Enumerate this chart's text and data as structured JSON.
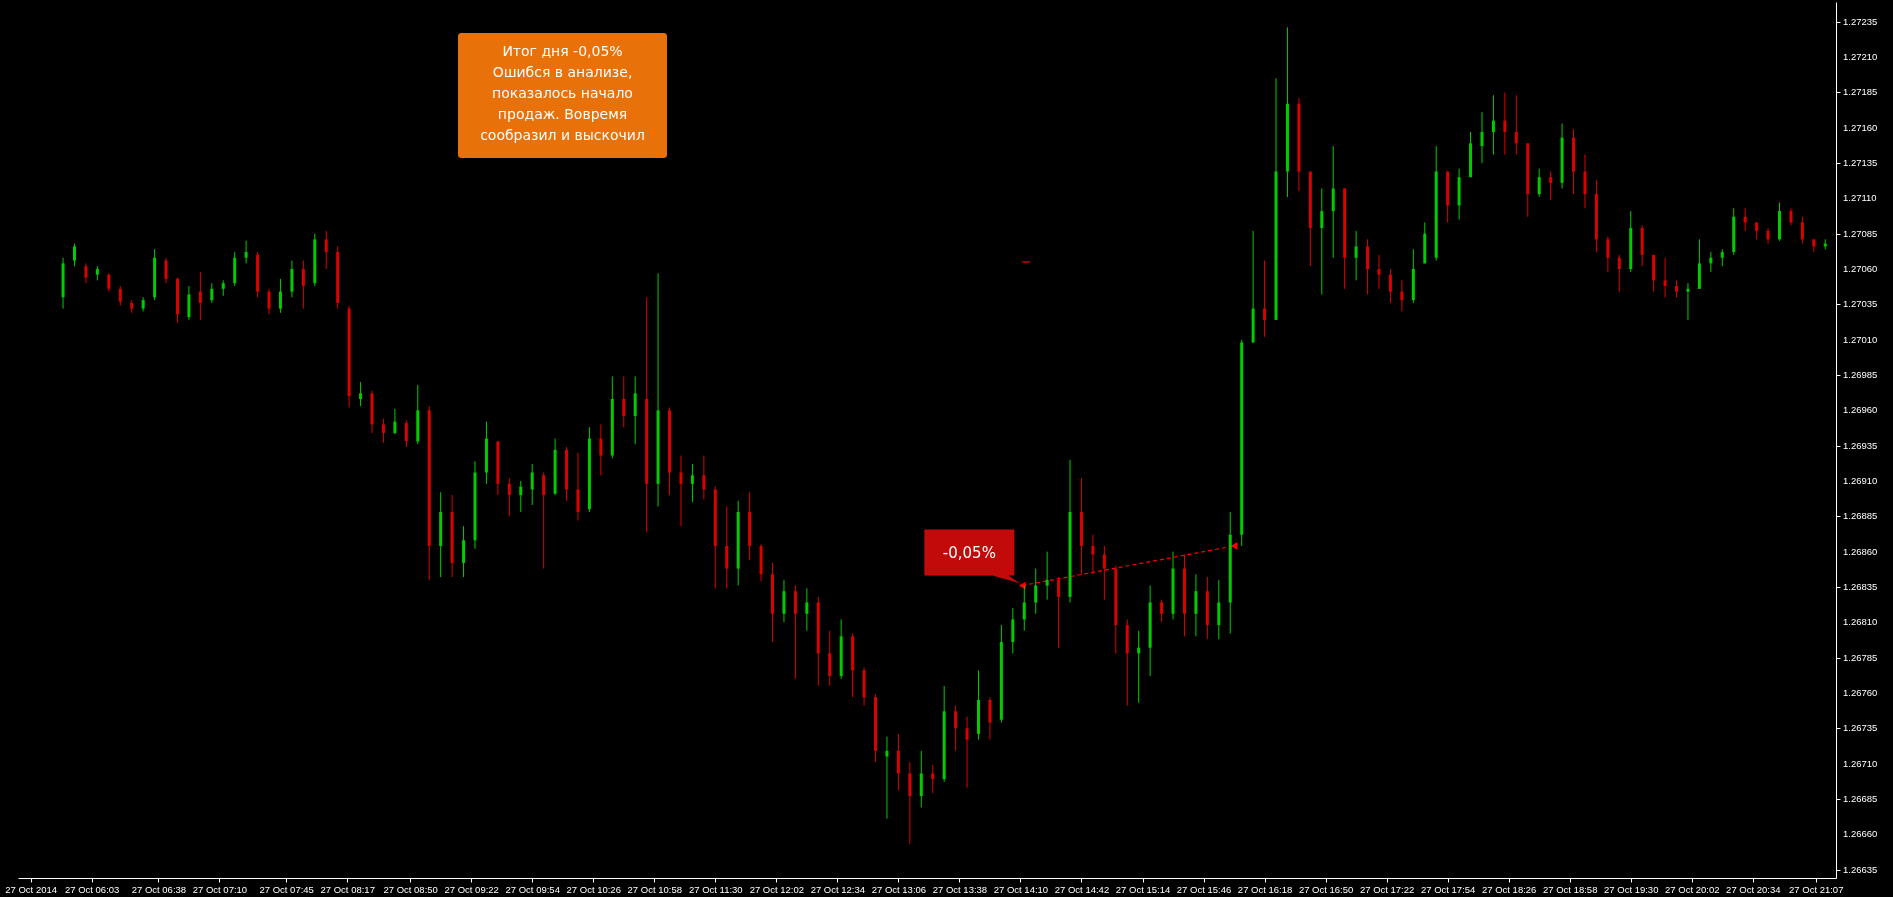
{
  "chart_data": {
    "type": "candlestick",
    "x": [
      "2014-10-27T05:48",
      "2014-10-27T05:54",
      "2014-10-27T06:00",
      "2014-10-27T06:06",
      "2014-10-27T06:12",
      "2014-10-27T06:18",
      "2014-10-27T06:24",
      "2014-10-27T06:30",
      "2014-10-27T06:36",
      "2014-10-27T06:42",
      "2014-10-27T06:48",
      "2014-10-27T06:54",
      "2014-10-27T07:00",
      "2014-10-27T07:06",
      "2014-10-27T07:12",
      "2014-10-27T07:18",
      "2014-10-27T07:24",
      "2014-10-27T07:30",
      "2014-10-27T07:36",
      "2014-10-27T07:42",
      "2014-10-27T07:48",
      "2014-10-27T07:54",
      "2014-10-27T08:00",
      "2014-10-27T08:06",
      "2014-10-27T08:12",
      "2014-10-27T08:18",
      "2014-10-27T08:24",
      "2014-10-27T08:30",
      "2014-10-27T08:36",
      "2014-10-27T08:42",
      "2014-10-27T08:48",
      "2014-10-27T08:54",
      "2014-10-27T09:00",
      "2014-10-27T09:06",
      "2014-10-27T09:12",
      "2014-10-27T09:18",
      "2014-10-27T09:24",
      "2014-10-27T09:30",
      "2014-10-27T09:36",
      "2014-10-27T09:42",
      "2014-10-27T09:48",
      "2014-10-27T09:54",
      "2014-10-27T10:00",
      "2014-10-27T10:06",
      "2014-10-27T10:12",
      "2014-10-27T10:18",
      "2014-10-27T10:24",
      "2014-10-27T10:30",
      "2014-10-27T10:36",
      "2014-10-27T10:42",
      "2014-10-27T10:48",
      "2014-10-27T10:54",
      "2014-10-27T11:00",
      "2014-10-27T11:06",
      "2014-10-27T11:12",
      "2014-10-27T11:18",
      "2014-10-27T11:24",
      "2014-10-27T11:30",
      "2014-10-27T11:36",
      "2014-10-27T11:42",
      "2014-10-27T11:48",
      "2014-10-27T11:54",
      "2014-10-27T12:00",
      "2014-10-27T12:06",
      "2014-10-27T12:12",
      "2014-10-27T12:18",
      "2014-10-27T12:24",
      "2014-10-27T12:30",
      "2014-10-27T12:36",
      "2014-10-27T12:42",
      "2014-10-27T12:48",
      "2014-10-27T12:54",
      "2014-10-27T13:00",
      "2014-10-27T13:06",
      "2014-10-27T13:12",
      "2014-10-27T13:18",
      "2014-10-27T13:24",
      "2014-10-27T13:30",
      "2014-10-27T13:36",
      "2014-10-27T13:42",
      "2014-10-27T13:48",
      "2014-10-27T13:54",
      "2014-10-27T14:00",
      "2014-10-27T14:06",
      "2014-10-27T14:12",
      "2014-10-27T14:18",
      "2014-10-27T14:24",
      "2014-10-27T14:30",
      "2014-10-27T14:36",
      "2014-10-27T14:42",
      "2014-10-27T14:48",
      "2014-10-27T14:54",
      "2014-10-27T15:00",
      "2014-10-27T15:06",
      "2014-10-27T15:12",
      "2014-10-27T15:18",
      "2014-10-27T15:24",
      "2014-10-27T15:30",
      "2014-10-27T15:36",
      "2014-10-27T15:42",
      "2014-10-27T15:48",
      "2014-10-27T15:54",
      "2014-10-27T16:00",
      "2014-10-27T16:06",
      "2014-10-27T16:12",
      "2014-10-27T16:18",
      "2014-10-27T16:24",
      "2014-10-27T16:30",
      "2014-10-27T16:36",
      "2014-10-27T16:42",
      "2014-10-27T16:48",
      "2014-10-27T16:54",
      "2014-10-27T17:00",
      "2014-10-27T17:06",
      "2014-10-27T17:12",
      "2014-10-27T17:18",
      "2014-10-27T17:24",
      "2014-10-27T17:30",
      "2014-10-27T17:36",
      "2014-10-27T17:42",
      "2014-10-27T17:48",
      "2014-10-27T17:54",
      "2014-10-27T18:00",
      "2014-10-27T18:06",
      "2014-10-27T18:12",
      "2014-10-27T18:18",
      "2014-10-27T18:24",
      "2014-10-27T18:30",
      "2014-10-27T18:36",
      "2014-10-27T18:42",
      "2014-10-27T18:48",
      "2014-10-27T18:54",
      "2014-10-27T19:00",
      "2014-10-27T19:06",
      "2014-10-27T19:12",
      "2014-10-27T19:18",
      "2014-10-27T19:24",
      "2014-10-27T19:30",
      "2014-10-27T19:36",
      "2014-10-27T19:42",
      "2014-10-27T19:48",
      "2014-10-27T19:54",
      "2014-10-27T20:00",
      "2014-10-27T20:06",
      "2014-10-27T20:12",
      "2014-10-27T20:18",
      "2014-10-27T20:24",
      "2014-10-27T20:30",
      "2014-10-27T20:36",
      "2014-10-27T20:42",
      "2014-10-27T20:48",
      "2014-10-27T20:54",
      "2014-10-27T21:00",
      "2014-10-27T21:06",
      "2014-10-27T21:12"
    ],
    "ohlc": [
      [
        1.2704,
        1.27068,
        1.27032,
        1.27064
      ],
      [
        1.27066,
        1.27078,
        1.27062,
        1.27076
      ],
      [
        1.27062,
        1.27064,
        1.2705,
        1.27054
      ],
      [
        1.27056,
        1.27062,
        1.27052,
        1.2706
      ],
      [
        1.27056,
        1.27057,
        1.27044,
        1.27046
      ],
      [
        1.27046,
        1.27048,
        1.27034,
        1.27037
      ],
      [
        1.27036,
        1.27038,
        1.27029,
        1.27032
      ],
      [
        1.27032,
        1.2704,
        1.2703,
        1.27038
      ],
      [
        1.2704,
        1.27074,
        1.27038,
        1.27068
      ],
      [
        1.27066,
        1.27068,
        1.2705,
        1.27053
      ],
      [
        1.27053,
        1.27054,
        1.27022,
        1.27028
      ],
      [
        1.27026,
        1.27048,
        1.27024,
        1.27042
      ],
      [
        1.27044,
        1.27058,
        1.27024,
        1.27036
      ],
      [
        1.27038,
        1.2705,
        1.27036,
        1.27046
      ],
      [
        1.27046,
        1.27052,
        1.27041,
        1.2705
      ],
      [
        1.2705,
        1.27072,
        1.27048,
        1.27068
      ],
      [
        1.27068,
        1.2708,
        1.27064,
        1.27072
      ],
      [
        1.2707,
        1.27072,
        1.2704,
        1.27044
      ],
      [
        1.27044,
        1.27046,
        1.27028,
        1.27032
      ],
      [
        1.27032,
        1.27053,
        1.27029,
        1.27044
      ],
      [
        1.27044,
        1.27066,
        1.2704,
        1.2706
      ],
      [
        1.2706,
        1.27066,
        1.27032,
        1.27048
      ],
      [
        1.2705,
        1.27085,
        1.27048,
        1.27081
      ],
      [
        1.27081,
        1.27087,
        1.2706,
        1.27072
      ],
      [
        1.27072,
        1.27076,
        1.27032,
        1.27036
      ],
      [
        1.27032,
        1.27034,
        1.26962,
        1.2697
      ],
      [
        1.26968,
        1.2698,
        1.26963,
        1.26972
      ],
      [
        1.26972,
        1.26974,
        1.26944,
        1.2695
      ],
      [
        1.2695,
        1.26954,
        1.26937,
        1.26944
      ],
      [
        1.26944,
        1.26961,
        1.26943,
        1.26952
      ],
      [
        1.26951,
        1.26953,
        1.26934,
        1.26938
      ],
      [
        1.26938,
        1.26978,
        1.26936,
        1.2696
      ],
      [
        1.2696,
        1.26963,
        1.2684,
        1.26864
      ],
      [
        1.26864,
        1.26902,
        1.26842,
        1.26888
      ],
      [
        1.26888,
        1.269,
        1.26842,
        1.26852
      ],
      [
        1.26852,
        1.26878,
        1.26842,
        1.26868
      ],
      [
        1.26868,
        1.26924,
        1.26862,
        1.26916
      ],
      [
        1.26916,
        1.26952,
        1.26908,
        1.2694
      ],
      [
        1.26938,
        1.26938,
        1.269,
        1.26908
      ],
      [
        1.26908,
        1.26912,
        1.26885,
        1.269
      ],
      [
        1.269,
        1.2691,
        1.26888,
        1.26906
      ],
      [
        1.26904,
        1.26922,
        1.26893,
        1.26916
      ],
      [
        1.26914,
        1.26916,
        1.26848,
        1.269
      ],
      [
        1.26901,
        1.2694,
        1.269,
        1.26932
      ],
      [
        1.26932,
        1.26934,
        1.26896,
        1.26904
      ],
      [
        1.26904,
        1.2693,
        1.26882,
        1.26888
      ],
      [
        1.2689,
        1.26948,
        1.26888,
        1.2694
      ],
      [
        1.2694,
        1.2695,
        1.26914,
        1.26928
      ],
      [
        1.26928,
        1.26984,
        1.26926,
        1.26968
      ],
      [
        1.26968,
        1.26984,
        1.26948,
        1.26956
      ],
      [
        1.26956,
        1.26984,
        1.26936,
        1.26972
      ],
      [
        1.26968,
        1.2704,
        1.26874,
        1.26908
      ],
      [
        1.26908,
        1.27057,
        1.26892,
        1.2696
      ],
      [
        1.2696,
        1.26962,
        1.269,
        1.26916
      ],
      [
        1.26916,
        1.26928,
        1.26878,
        1.26908
      ],
      [
        1.26908,
        1.26922,
        1.26895,
        1.26914
      ],
      [
        1.26914,
        1.26928,
        1.26897,
        1.26904
      ],
      [
        1.26904,
        1.26906,
        1.26834,
        1.26864
      ],
      [
        1.26864,
        1.26892,
        1.26834,
        1.26848
      ],
      [
        1.26848,
        1.26896,
        1.26836,
        1.26888
      ],
      [
        1.26888,
        1.26902,
        1.26854,
        1.26864
      ],
      [
        1.26864,
        1.26865,
        1.26839,
        1.26844
      ],
      [
        1.26844,
        1.26852,
        1.26796,
        1.26816
      ],
      [
        1.26816,
        1.2684,
        1.2681,
        1.26832
      ],
      [
        1.26832,
        1.26836,
        1.2677,
        1.26816
      ],
      [
        1.26816,
        1.26834,
        1.26804,
        1.26824
      ],
      [
        1.26824,
        1.26828,
        1.26765,
        1.26788
      ],
      [
        1.26788,
        1.26804,
        1.26765,
        1.26772
      ],
      [
        1.26772,
        1.26812,
        1.2677,
        1.268
      ],
      [
        1.268,
        1.26802,
        1.26757,
        1.26776
      ],
      [
        1.26776,
        1.26778,
        1.26751,
        1.26757
      ],
      [
        1.26757,
        1.26759,
        1.26711,
        1.26719
      ],
      [
        1.26715,
        1.26729,
        1.26671,
        1.26719
      ],
      [
        1.26719,
        1.26731,
        1.26691,
        1.26703
      ],
      [
        1.26703,
        1.26711,
        1.26653,
        1.26687
      ],
      [
        1.26687,
        1.26719,
        1.26679,
        1.26703
      ],
      [
        1.26703,
        1.26709,
        1.26689,
        1.26699
      ],
      [
        1.26699,
        1.26765,
        1.26697,
        1.26747
      ],
      [
        1.26747,
        1.26751,
        1.26719,
        1.26735
      ],
      [
        1.26735,
        1.26743,
        1.26693,
        1.26727
      ],
      [
        1.26731,
        1.26776,
        1.26727,
        1.26755
      ],
      [
        1.26755,
        1.26757,
        1.26727,
        1.26739
      ],
      [
        1.26741,
        1.26808,
        1.26739,
        1.26796
      ],
      [
        1.26796,
        1.2682,
        1.26788,
        1.26812
      ],
      [
        1.26812,
        1.26836,
        1.26804,
        1.26824
      ],
      [
        1.26824,
        1.26848,
        1.26816,
        1.26836
      ],
      [
        1.26836,
        1.2686,
        1.26826,
        1.2684
      ],
      [
        1.2684,
        1.26842,
        1.26792,
        1.26828
      ],
      [
        1.26828,
        1.26925,
        1.26824,
        1.26888
      ],
      [
        1.26888,
        1.26912,
        1.26844,
        1.26864
      ],
      [
        1.26864,
        1.26872,
        1.26844,
        1.26858
      ],
      [
        1.26858,
        1.26864,
        1.26826,
        1.26848
      ],
      [
        1.26848,
        1.2685,
        1.26788,
        1.26808
      ],
      [
        1.26808,
        1.26812,
        1.26751,
        1.26788
      ],
      [
        1.26788,
        1.26804,
        1.26753,
        1.26792
      ],
      [
        1.26792,
        1.26836,
        1.26772,
        1.26824
      ],
      [
        1.26824,
        1.26826,
        1.2681,
        1.26816
      ],
      [
        1.26816,
        1.2686,
        1.26812,
        1.26848
      ],
      [
        1.26848,
        1.26858,
        1.268,
        1.26816
      ],
      [
        1.26816,
        1.26844,
        1.268,
        1.26832
      ],
      [
        1.26832,
        1.26842,
        1.26798,
        1.26808
      ],
      [
        1.26808,
        1.2684,
        1.26798,
        1.26824
      ],
      [
        1.26824,
        1.26888,
        1.26802,
        1.26872
      ],
      [
        1.26872,
        1.2701,
        1.26864,
        1.27008
      ],
      [
        1.27008,
        1.27087,
        1.27008,
        1.27032
      ],
      [
        1.27032,
        1.27066,
        1.27012,
        1.27024
      ],
      [
        1.27024,
        1.27195,
        1.27024,
        1.27129
      ],
      [
        1.27129,
        1.27231,
        1.27111,
        1.27177
      ],
      [
        1.27177,
        1.27181,
        1.27115,
        1.27129
      ],
      [
        1.27129,
        1.27129,
        1.27062,
        1.27089
      ],
      [
        1.27089,
        1.27117,
        1.27042,
        1.27101
      ],
      [
        1.27101,
        1.27147,
        1.27068,
        1.27117
      ],
      [
        1.27117,
        1.27117,
        1.27046,
        1.27068
      ],
      [
        1.27068,
        1.27087,
        1.27052,
        1.27076
      ],
      [
        1.27076,
        1.27081,
        1.27042,
        1.2706
      ],
      [
        1.2706,
        1.2707,
        1.27046,
        1.27056
      ],
      [
        1.27056,
        1.2706,
        1.27036,
        1.27044
      ],
      [
        1.27044,
        1.27052,
        1.2703,
        1.27038
      ],
      [
        1.27038,
        1.27074,
        1.27036,
        1.2706
      ],
      [
        1.27064,
        1.27093,
        1.27064,
        1.27085
      ],
      [
        1.27068,
        1.27147,
        1.27066,
        1.27129
      ],
      [
        1.27129,
        1.27129,
        1.27093,
        1.27105
      ],
      [
        1.27105,
        1.27131,
        1.27095,
        1.27125
      ],
      [
        1.27125,
        1.27157,
        1.27125,
        1.27149
      ],
      [
        1.27147,
        1.27171,
        1.27135,
        1.27157
      ],
      [
        1.27157,
        1.27183,
        1.27141,
        1.27165
      ],
      [
        1.27165,
        1.27185,
        1.27141,
        1.27157
      ],
      [
        1.27157,
        1.27183,
        1.27141,
        1.27149
      ],
      [
        1.27149,
        1.27149,
        1.27097,
        1.27113
      ],
      [
        1.27113,
        1.27131,
        1.27111,
        1.27125
      ],
      [
        1.27125,
        1.27129,
        1.27109,
        1.27121
      ],
      [
        1.27121,
        1.27163,
        1.27117,
        1.27153
      ],
      [
        1.27153,
        1.27159,
        1.27113,
        1.27129
      ],
      [
        1.27129,
        1.27141,
        1.27103,
        1.27113
      ],
      [
        1.27113,
        1.27123,
        1.27072,
        1.27081
      ],
      [
        1.27081,
        1.27083,
        1.27058,
        1.27068
      ],
      [
        1.27068,
        1.2707,
        1.27044,
        1.2706
      ],
      [
        1.2706,
        1.27101,
        1.27058,
        1.27089
      ],
      [
        1.27089,
        1.27091,
        1.27062,
        1.2707
      ],
      [
        1.2707,
        1.2707,
        1.27044,
        1.27052
      ],
      [
        1.27052,
        1.27068,
        1.2704,
        1.27048
      ],
      [
        1.27048,
        1.27052,
        1.2704,
        1.27044
      ],
      [
        1.27044,
        1.2705,
        1.27024,
        1.27046
      ],
      [
        1.27046,
        1.27081,
        1.27046,
        1.27064
      ],
      [
        1.27064,
        1.27072,
        1.27058,
        1.27068
      ],
      [
        1.27068,
        1.27074,
        1.27062,
        1.27072
      ],
      [
        1.27072,
        1.27103,
        1.2707,
        1.27097
      ],
      [
        1.27097,
        1.27103,
        1.27087,
        1.27093
      ],
      [
        1.27093,
        1.27093,
        1.27081,
        1.27087
      ],
      [
        1.27087,
        1.27089,
        1.27078,
        1.27081
      ],
      [
        1.27081,
        1.27107,
        1.2708,
        1.27101
      ],
      [
        1.27101,
        1.27103,
        1.27091,
        1.27093
      ],
      [
        1.27093,
        1.27097,
        1.27078,
        1.27081
      ],
      [
        1.27081,
        1.27081,
        1.27072,
        1.27076
      ],
      [
        1.27076,
        1.27081,
        1.27074,
        1.27078
      ]
    ],
    "colors": [
      "#00cc00",
      "#00cc00",
      "#dd0000",
      "#00cc00",
      "#dd0000",
      "#dd0000",
      "#dd0000",
      "#00cc00",
      "#00cc00",
      "#dd0000",
      "#dd0000",
      "#00cc00",
      "#dd0000",
      "#00cc00",
      "#00cc00",
      "#00cc00",
      "#00cc00",
      "#dd0000",
      "#dd0000",
      "#00cc00",
      "#00cc00",
      "#dd0000",
      "#00cc00",
      "#dd0000",
      "#dd0000",
      "#dd0000",
      "#00cc00",
      "#dd0000",
      "#dd0000",
      "#00cc00",
      "#dd0000",
      "#00cc00",
      "#dd0000",
      "#00cc00",
      "#dd0000",
      "#00cc00",
      "#00cc00",
      "#00cc00",
      "#dd0000",
      "#dd0000",
      "#00cc00",
      "#00cc00",
      "#dd0000",
      "#00cc00",
      "#dd0000",
      "#dd0000",
      "#00cc00",
      "#dd0000",
      "#00cc00",
      "#dd0000",
      "#00cc00",
      "#dd0000",
      "#00cc00",
      "#dd0000",
      "#dd0000",
      "#00cc00",
      "#dd0000",
      "#dd0000",
      "#dd0000",
      "#00cc00",
      "#dd0000",
      "#dd0000",
      "#dd0000",
      "#00cc00",
      "#dd0000",
      "#00cc00",
      "#dd0000",
      "#dd0000",
      "#00cc00",
      "#dd0000",
      "#dd0000",
      "#dd0000",
      "#00cc00",
      "#dd0000",
      "#dd0000",
      "#00cc00",
      "#dd0000",
      "#00cc00",
      "#dd0000",
      "#dd0000",
      "#00cc00",
      "#dd0000",
      "#00cc00",
      "#00cc00",
      "#00cc00",
      "#00cc00",
      "#00cc00",
      "#dd0000",
      "#00cc00",
      "#dd0000",
      "#dd0000",
      "#dd0000",
      "#dd0000",
      "#dd0000",
      "#00cc00",
      "#00cc00",
      "#dd0000",
      "#00cc00",
      "#dd0000",
      "#00cc00",
      "#dd0000",
      "#00cc00",
      "#00cc00",
      "#00cc00",
      "#00cc00",
      "#dd0000",
      "#00cc00",
      "#00cc00",
      "#dd0000",
      "#dd0000",
      "#00cc00",
      "#00cc00",
      "#dd0000",
      "#00cc00",
      "#dd0000",
      "#dd0000",
      "#dd0000",
      "#dd0000",
      "#00cc00",
      "#00cc00",
      "#00cc00",
      "#dd0000",
      "#00cc00",
      "#00cc00",
      "#00cc00",
      "#00cc00",
      "#dd0000",
      "#dd0000",
      "#dd0000",
      "#00cc00",
      "#dd0000",
      "#00cc00",
      "#dd0000",
      "#dd0000",
      "#dd0000",
      "#dd0000",
      "#dd0000",
      "#00cc00",
      "#dd0000",
      "#dd0000",
      "#dd0000",
      "#dd0000",
      "#00cc00",
      "#00cc00",
      "#00cc00",
      "#00cc00",
      "#00cc00",
      "#dd0000",
      "#dd0000",
      "#dd0000",
      "#00cc00",
      "#dd0000",
      "#dd0000",
      "#dd0000",
      "#00cc00"
    ],
    "xlim": [
      "2014-10-27T05:27",
      "2014-10-27T21:15"
    ],
    "xticks": [
      {
        "value": "2014-10-27T05:31",
        "label": "27 Oct 2014"
      },
      {
        "value": "2014-10-27T06:03",
        "label": "27 Oct 06:03"
      },
      {
        "value": "2014-10-27T06:38",
        "label": "27 Oct 06:38"
      },
      {
        "value": "2014-10-27T07:10",
        "label": "27 Oct 07:10"
      },
      {
        "value": "2014-10-27T07:45",
        "label": "27 Oct 07:45"
      },
      {
        "value": "2014-10-27T08:17",
        "label": "27 Oct 08:17"
      },
      {
        "value": "2014-10-27T08:50",
        "label": "27 Oct 08:50"
      },
      {
        "value": "2014-10-27T09:22",
        "label": "27 Oct 09:22"
      },
      {
        "value": "2014-10-27T09:54",
        "label": "27 Oct 09:54"
      },
      {
        "value": "2014-10-27T10:26",
        "label": "27 Oct 10:26"
      },
      {
        "value": "2014-10-27T10:58",
        "label": "27 Oct 10:58"
      },
      {
        "value": "2014-10-27T11:30",
        "label": "27 Oct 11:30"
      },
      {
        "value": "2014-10-27T12:02",
        "label": "27 Oct 12:02"
      },
      {
        "value": "2014-10-27T12:34",
        "label": "27 Oct 12:34"
      },
      {
        "value": "2014-10-27T13:06",
        "label": "27 Oct 13:06"
      },
      {
        "value": "2014-10-27T13:38",
        "label": "27 Oct 13:38"
      },
      {
        "value": "2014-10-27T14:10",
        "label": "27 Oct 14:10"
      },
      {
        "value": "2014-10-27T14:42",
        "label": "27 Oct 14:42"
      },
      {
        "value": "2014-10-27T15:14",
        "label": "27 Oct 15:14"
      },
      {
        "value": "2014-10-27T15:46",
        "label": "27 Oct 15:46"
      },
      {
        "value": "2014-10-27T16:18",
        "label": "27 Oct 16:18"
      },
      {
        "value": "2014-10-27T16:50",
        "label": "27 Oct 16:50"
      },
      {
        "value": "2014-10-27T17:22",
        "label": "27 Oct 17:22"
      },
      {
        "value": "2014-10-27T17:54",
        "label": "27 Oct 17:54"
      },
      {
        "value": "2014-10-27T18:26",
        "label": "27 Oct 18:26"
      },
      {
        "value": "2014-10-27T18:58",
        "label": "27 Oct 18:58"
      },
      {
        "value": "2014-10-27T19:30",
        "label": "27 Oct 19:30"
      },
      {
        "value": "2014-10-27T20:02",
        "label": "27 Oct 20:02"
      },
      {
        "value": "2014-10-27T20:34",
        "label": "27 Oct 20:34"
      },
      {
        "value": "2014-10-27T21:07",
        "label": "27 Oct 21:07"
      }
    ],
    "ylim": [
      1.26629,
      1.27249
    ],
    "yticks": [
      1.26635,
      {
        "value": 1.2666,
        "label": "1.26660"
      },
      1.26685,
      {
        "value": 1.2671,
        "label": "1.26710"
      },
      1.26735,
      {
        "value": 1.2676,
        "label": "1.26760"
      },
      1.26785,
      {
        "value": 1.2681,
        "label": "1.26810"
      },
      1.26835,
      {
        "value": 1.2686,
        "label": "1.26860"
      },
      1.26885,
      {
        "value": 1.2691,
        "label": "1.26910"
      },
      1.26935,
      {
        "value": 1.2696,
        "label": "1.26960"
      },
      1.26985,
      {
        "value": 1.2701,
        "label": "1.27010"
      },
      1.27035,
      {
        "value": 1.2706,
        "label": "1.27060"
      },
      1.27085,
      {
        "value": 1.2711,
        "label": "1.27110"
      },
      1.27135,
      {
        "value": 1.2716,
        "label": "1.27160"
      },
      1.27185,
      {
        "value": 1.2721,
        "label": "1.27210"
      },
      1.27235
    ],
    "series": [
      {
        "type": "line",
        "x": [
          "2014-10-27T14:11",
          "2014-10-27T16:02"
        ],
        "values": [
          1.26836,
          1.26864
        ],
        "color": "#ff0000",
        "line_style": "dashed",
        "marker": "triangle"
      },
      {
        "type": "line",
        "x": [
          "2014-10-27T14:11",
          "2014-10-27T14:15"
        ],
        "values": [
          1.27065,
          1.27065
        ],
        "color": "#ff0000"
      }
    ],
    "annotations": [
      "Итог дня -0,05% Ошибся в анализе, показалось начало продаж. Вовремя сообразил и выскочил",
      {
        "text": "-0,05%",
        "x": "2014-10-27T14:11",
        "y": 1.26836
      }
    ]
  }
}
